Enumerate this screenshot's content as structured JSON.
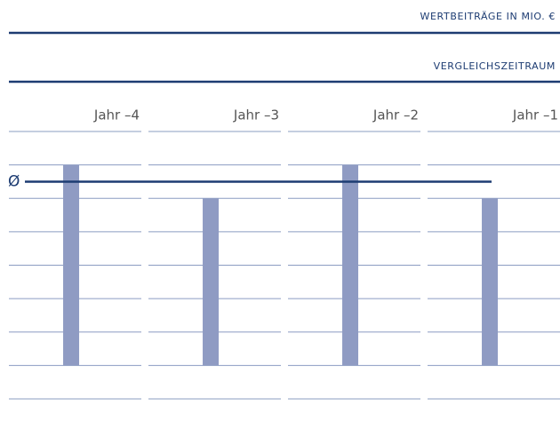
{
  "chart_data": {
    "type": "bar",
    "header": "WERTBEITRÄGE IN MIO. €",
    "subheader": "VERGLEICHSZEITRAUM",
    "categories": [
      "Jahr –4",
      "Jahr –3",
      "Jahr –2",
      "Jahr –1"
    ],
    "values": [
      6,
      5,
      6,
      5
    ],
    "color": "#8f9bc3",
    "average": {
      "label": "Ø",
      "value": 5.5,
      "color": "#1d3c72"
    },
    "ylim": [
      -1,
      7
    ],
    "yticks": [
      -1,
      0,
      1,
      2,
      3,
      4,
      5,
      6,
      7
    ],
    "grid": true
  }
}
